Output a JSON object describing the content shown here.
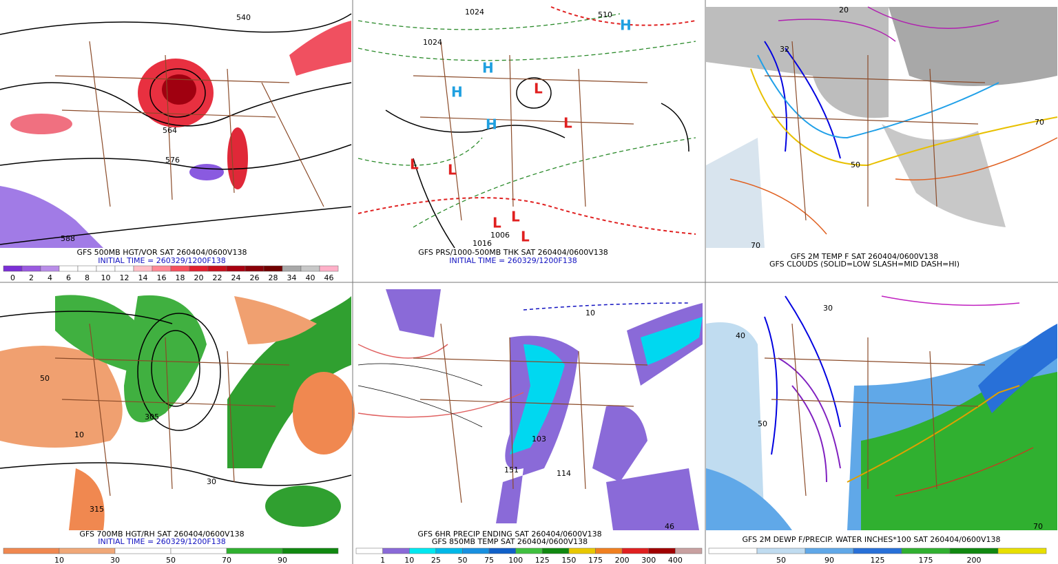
{
  "panels": [
    {
      "captions": [
        "GFS 500MB HGT/VOR SAT 260404/0600V138",
        "INITIAL TIME = 260329/1200F138"
      ],
      "map_labels": [
        "540",
        "576",
        "588",
        "564"
      ],
      "colorbar": {
        "labels": [
          "0",
          "2",
          "4",
          "6",
          "8",
          "10",
          "12",
          "14",
          "16",
          "18",
          "20",
          "22",
          "24",
          "26",
          "28",
          "34",
          "40",
          "46"
        ],
        "colors": [
          "#7b2fd6",
          "#9a5ae0",
          "#b98de8",
          "#ffffff",
          "#ffffff",
          "#ffffff",
          "#ffffff",
          "#ffc0c8",
          "#ff8a96",
          "#f5505e",
          "#e02030",
          "#c8101e",
          "#a80010",
          "#8a0008",
          "#700000",
          "#a8a8a8",
          "#c8c8c8",
          "#ffb0c8"
        ]
      }
    },
    {
      "captions": [
        "GFS PRS/1000-500MB THK SAT 260404/0600V138",
        "INITIAL TIME = 260329/1200F138"
      ],
      "map_labels": [
        "1024",
        "1024",
        "1016",
        "1006",
        "510"
      ]
    },
    {
      "captions": [
        "GFS 2M TEMP F SAT 260404/0600V138",
        "GFS CLOUDS (SOLID=LOW SLASH=MID DASH=HI)"
      ],
      "map_labels": [
        "32",
        "20",
        "70",
        "50",
        "70"
      ]
    },
    {
      "captions": [
        "GFS 700MB HGT/RH SAT 260404/0600V138",
        "INITIAL TIME = 260329/1200F138"
      ],
      "map_labels": [
        "50",
        "10",
        "305",
        "315",
        "30"
      ],
      "colorbar": {
        "labels": [
          "10",
          "30",
          "50",
          "70",
          "90"
        ],
        "colors": [
          "#f08850",
          "#f0a878",
          "#ffffff",
          "#ffffff",
          "#30b030",
          "#108810"
        ]
      }
    },
    {
      "captions": [
        "GFS 6HR PRECIP ENDING SAT 260404/0600V138",
        "GFS 850MB TEMP SAT 260404/0600V138"
      ],
      "map_labels": [
        "103",
        "151",
        "114",
        "46",
        "10"
      ],
      "colorbar": {
        "labels": [
          "1",
          "10",
          "25",
          "50",
          "75",
          "100",
          "125",
          "150",
          "175",
          "200",
          "300",
          "400"
        ],
        "colors": [
          "#ffffff",
          "#8a6ad8",
          "#00e8f0",
          "#00b8e8",
          "#1890e0",
          "#1060c8",
          "#40c040",
          "#108810",
          "#e8c800",
          "#f08020",
          "#e02020",
          "#a00000",
          "#c8a0a0"
        ]
      }
    },
    {
      "captions": [
        "GFS 2M DEWP F/PRECIP. WATER INCHES*100 SAT 260404/0600V138"
      ],
      "map_labels": [
        "30",
        "50",
        "70",
        "40"
      ],
      "colorbar": {
        "labels": [
          "50",
          "90",
          "125",
          "175",
          "200"
        ],
        "colors": [
          "#ffffff",
          "#c0dcf0",
          "#60a8e8",
          "#2870d8",
          "#30b030",
          "#108810",
          "#e8e000"
        ]
      }
    }
  ]
}
